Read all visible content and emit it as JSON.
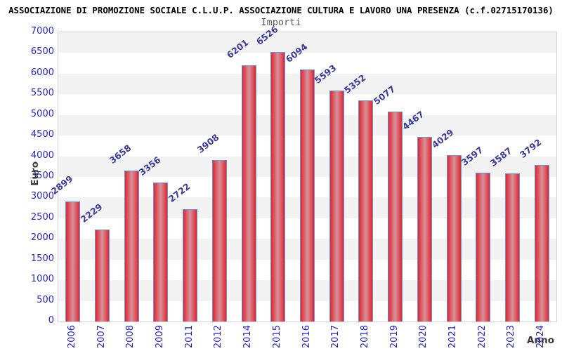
{
  "header": {
    "title": "ASSOCIAZIONE DI PROMOZIONE SOCIALE C.L.U.P. ASSOCIAZIONE CULTURA E LAVORO UNA PRESENZA (c.f.02715170136)",
    "subtitle": "Importi"
  },
  "chart_data": {
    "type": "bar",
    "title": "ASSOCIAZIONE DI PROMOZIONE SOCIALE C.L.U.P. ASSOCIAZIONE CULTURA E LAVORO UNA PRESENZA (c.f.02715170136)",
    "subtitle": "Importi",
    "xlabel": "Anno",
    "ylabel": "Euro",
    "categories": [
      "2006",
      "2007",
      "2008",
      "2009",
      "2011",
      "2012",
      "2014",
      "2015",
      "2016",
      "2017",
      "2018",
      "2019",
      "2020",
      "2021",
      "2022",
      "2023",
      "2024"
    ],
    "values": [
      2899,
      2229,
      3658,
      3356,
      2722,
      3908,
      6201,
      6526,
      6094,
      5593,
      5352,
      5077,
      4467,
      4029,
      3597,
      3587,
      3792
    ],
    "ylim": [
      0,
      7000
    ],
    "ytick_step": 500,
    "grid": "alternating-horizontal-bands",
    "legend": "none",
    "bar_value_labels_rotated": true
  },
  "colors": {
    "title_text": "#000000",
    "subtitle_text": "#58595b",
    "tick_label": "#2424d2",
    "value_label": "#3b3b9d",
    "axis_title": "#3c3c3c",
    "bar_border": "#5b9be4",
    "bar_fill_edge": "#e32430",
    "bar_fill_mid": "#d5929a",
    "band_gray": "#f2f2f2",
    "band_white": "#ffffff",
    "plot_border": "#d4d4d4"
  }
}
